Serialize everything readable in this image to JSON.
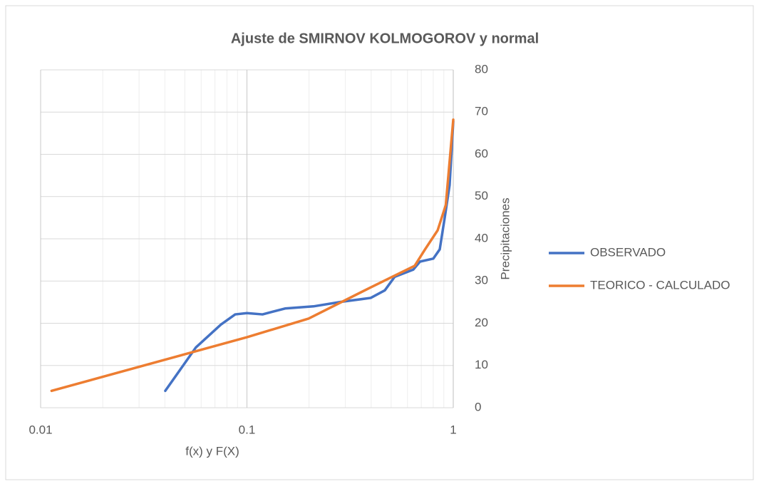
{
  "chart_data": {
    "type": "line",
    "title": "Ajuste de SMIRNOV KOLMOGOROV y normal",
    "xlabel": "f(x) y F(X)",
    "ylabel": "Precipitaciones",
    "xscale": "log",
    "xlim": [
      0.01,
      1
    ],
    "xticks": [
      0.01,
      0.1,
      1
    ],
    "ylim": [
      0,
      80
    ],
    "yticks": [
      0,
      10,
      20,
      30,
      40,
      50,
      60,
      70,
      80
    ],
    "yaxis_side": "right",
    "grid": true,
    "legend": "right",
    "series": [
      {
        "name": "OBSERVADO",
        "color": "#4472c4",
        "x": [
          0.0402,
          0.0566,
          0.0748,
          0.0877,
          0.1,
          0.119,
          0.153,
          0.21,
          0.289,
          0.398,
          0.466,
          0.52,
          0.64,
          0.69,
          0.8,
          0.86,
          0.915,
          0.96,
          1.0
        ],
        "values": [
          4,
          14.3,
          19.7,
          22.1,
          22.4,
          22.1,
          23.5,
          24,
          25.1,
          26,
          27.8,
          31,
          32.7,
          34.6,
          35.3,
          37.5,
          45.9,
          52.7,
          67.8
        ]
      },
      {
        "name": "TEORICO - CALCULADO",
        "color": "#ed7d31",
        "x": [
          0.0113,
          0.1,
          0.199,
          0.398,
          0.65,
          0.73,
          0.84,
          0.92,
          1.0
        ],
        "values": [
          4,
          16.7,
          21.1,
          28.5,
          33.6,
          37.5,
          42,
          48,
          68.2
        ]
      }
    ]
  }
}
